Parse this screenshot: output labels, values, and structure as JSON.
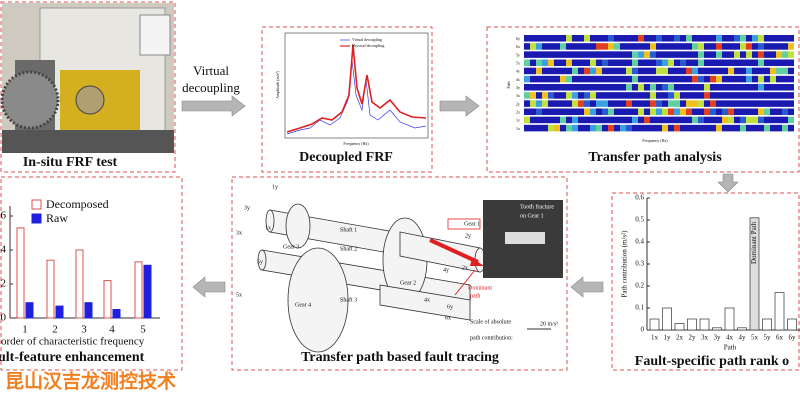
{
  "in_situ": {
    "caption": "In-situ FRF test"
  },
  "step1": {
    "label_lines": [
      "Virtual",
      "decoupling"
    ]
  },
  "frf": {
    "caption": "Decoupled FRF",
    "legend": [
      "Virtual decoupling",
      "Physical decoupling"
    ],
    "x_label": "Frequency (Hz)",
    "y_label": "Amplitude (m/s²)"
  },
  "tpa": {
    "caption": "Transfer path analysis",
    "paths": [
      "6y",
      "6x",
      "5y",
      "5x",
      "4y",
      "4x",
      "3y",
      "3x",
      "2y",
      "2x",
      "1y",
      "1x"
    ],
    "x_label": "Frequency (Hz)",
    "y_label": "Path"
  },
  "tracing": {
    "caption": "Transfer path based fault tracing",
    "labels": [
      "1y",
      "3y",
      "1x",
      "3x",
      "Gear 3",
      "Shaft 1",
      "Shaft 2",
      "5y",
      "5x",
      "Gear 4",
      "Shaft 3",
      "Gear 2",
      "Gear 1",
      "2y",
      "2x",
      "4y",
      "4x",
      "6y",
      "6x",
      "Tooth fracture",
      "on Gear 1",
      "Dominant",
      "path",
      "Scale of absolute",
      "path contribution:",
      "20 m/s²"
    ]
  },
  "rank": {
    "caption": "Fault-specific path rank o",
    "y_label": "Path contribution (m/s²)",
    "x_label": "Path",
    "categories": [
      "1x",
      "1y",
      "2x",
      "2y",
      "3x",
      "3y",
      "4x",
      "4y",
      "5x",
      "5y",
      "6x",
      "6y"
    ],
    "values": [
      0.05,
      0.1,
      0.03,
      0.05,
      0.05,
      0.01,
      0.1,
      0.01,
      0.51,
      0.05,
      0.17,
      0.05
    ],
    "ylim": [
      0,
      0.6
    ],
    "yticks": [
      0,
      0.1,
      0.2,
      0.3,
      0.4,
      0.5,
      0.6
    ],
    "annotation": "Dominant Path"
  },
  "enhance": {
    "caption": "ult-feature enhancement",
    "x_label": "order of characteristic frequency",
    "categories": [
      "1",
      "2",
      "3",
      "4",
      "5"
    ],
    "series": [
      {
        "name": "Decomposed",
        "color": "#d9534f",
        "values": [
          5.3,
          3.4,
          4.0,
          2.2,
          3.3
        ]
      },
      {
        "name": "Raw",
        "color": "#1f1fe0",
        "values": [
          0.9,
          0.7,
          0.9,
          0.5,
          3.1
        ]
      }
    ],
    "ylim": [
      0,
      6
    ],
    "yticks": [
      0,
      2,
      4,
      6
    ]
  },
  "watermark": "昆山汉吉龙测控技术"
}
